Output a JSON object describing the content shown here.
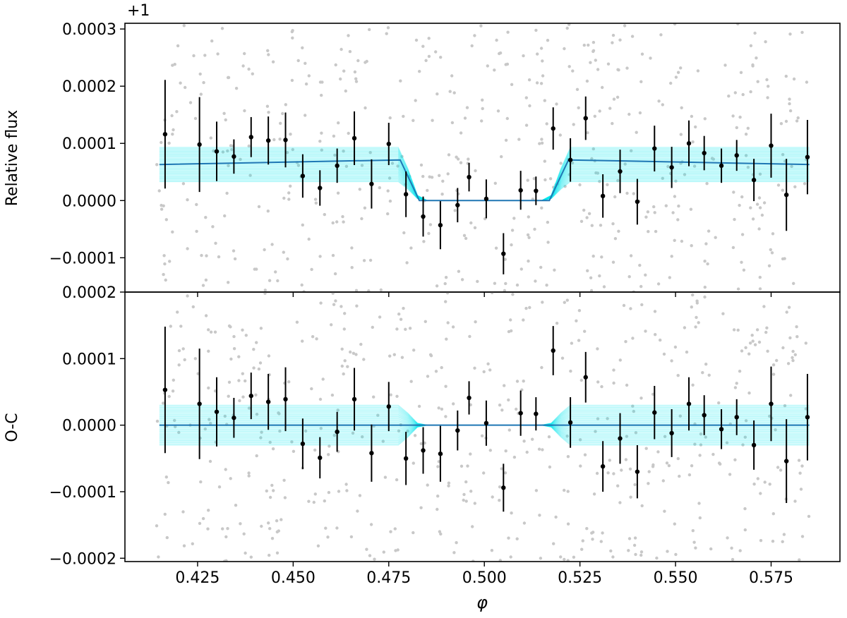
{
  "chart_data": [
    {
      "type": "scatter",
      "panel": "top",
      "ylabel": "Relative flux",
      "y_offset_label": "+1",
      "xlim": [
        0.406,
        0.593
      ],
      "ylim": [
        -0.00016,
        0.00031
      ],
      "xticks": [
        "0.425",
        "0.450",
        "0.475",
        "0.500",
        "0.525",
        "0.550",
        "0.575"
      ],
      "yticks": [
        "0.0003",
        "0.0002",
        "0.0001",
        "0.0000",
        "−0.0001"
      ],
      "grid": false,
      "model": {
        "name": "",
        "color": "#1f77b4",
        "x": [
          0.415,
          0.478,
          0.483,
          0.517,
          0.522,
          0.585
        ],
        "y": [
          6.3e-05,
          7.1e-05,
          0.0,
          0.0,
          7.1e-05,
          6.3e-05
        ]
      },
      "samples_band": {
        "color": "#00e5ee",
        "center_out": 6.3e-05,
        "spread": 3e-05
      },
      "binned_points": {
        "color": "#000000",
        "x": [
          0.4165,
          0.4255,
          0.43,
          0.4345,
          0.439,
          0.4435,
          0.448,
          0.4525,
          0.457,
          0.4615,
          0.466,
          0.4705,
          0.475,
          0.4795,
          0.484,
          0.4885,
          0.493,
          0.496,
          0.5005,
          0.505,
          0.5095,
          0.5135,
          0.518,
          0.5225,
          0.5265,
          0.531,
          0.5355,
          0.54,
          0.5445,
          0.549,
          0.5535,
          0.5575,
          0.562,
          0.566,
          0.5705,
          0.575,
          0.579,
          0.5845
        ],
        "y": [
          0.000116,
          9.8e-05,
          8.6e-05,
          7.7e-05,
          0.000111,
          0.000105,
          0.000106,
          4.3e-05,
          2.2e-05,
          6.1e-05,
          0.000109,
          2.9e-05,
          9.9e-05,
          1.1e-05,
          -2.8e-05,
          -4.3e-05,
          -8e-06,
          4.1e-05,
          3e-06,
          -9.3e-05,
          1.8e-05,
          1.7e-05,
          0.000126,
          7.1e-05,
          0.000144,
          8e-06,
          5.1e-05,
          -2e-06,
          9.1e-05,
          5.8e-05,
          0.0001,
          8.3e-05,
          6.1e-05,
          7.9e-05,
          3.6e-05,
          9.6e-05,
          1e-05,
          7.6e-05
        ],
        "yerr": [
          9.5e-05,
          8.3e-05,
          5.2e-05,
          3e-05,
          3.5e-05,
          4.2e-05,
          4.8e-05,
          3.8e-05,
          3.1e-05,
          3e-05,
          4.7e-05,
          4.3e-05,
          3.7e-05,
          4e-05,
          3.5e-05,
          4.2e-05,
          3e-05,
          2.5e-05,
          3.4e-05,
          3.6e-05,
          3.4e-05,
          2.5e-05,
          3.7e-05,
          3.8e-05,
          3.8e-05,
          3.8e-05,
          3.8e-05,
          4e-05,
          4e-05,
          3.6e-05,
          4e-05,
          3e-05,
          3e-05,
          2.7e-05,
          3.7e-05,
          5.6e-05,
          6.3e-05,
          6.5e-05
        ]
      },
      "raw_points": {
        "color": "#c8c8c8"
      }
    },
    {
      "type": "scatter",
      "panel": "bottom",
      "ylabel": "O-C",
      "xlabel": "φ",
      "xlim": [
        0.406,
        0.593
      ],
      "ylim": [
        -0.000205,
        0.0002
      ],
      "xticks": [
        "0.425",
        "0.450",
        "0.475",
        "0.500",
        "0.525",
        "0.550",
        "0.575"
      ],
      "yticks": [
        "0.0002",
        "0.0001",
        "0.0000",
        "−0.0001",
        "−0.0002"
      ],
      "grid": false,
      "model": {
        "name": "",
        "color": "#1f77b4",
        "x": [
          0.415,
          0.585
        ],
        "y": [
          0.0,
          0.0
        ]
      },
      "samples_band": {
        "color": "#00e5ee",
        "center_out": 0.0,
        "spread": 3e-05
      },
      "binned_points": {
        "color": "#000000",
        "x": [
          0.4165,
          0.4255,
          0.43,
          0.4345,
          0.439,
          0.4435,
          0.448,
          0.4525,
          0.457,
          0.4615,
          0.466,
          0.4705,
          0.475,
          0.4795,
          0.484,
          0.4885,
          0.493,
          0.496,
          0.5005,
          0.505,
          0.5095,
          0.5135,
          0.518,
          0.5225,
          0.5265,
          0.531,
          0.5355,
          0.54,
          0.5445,
          0.549,
          0.5535,
          0.5575,
          0.562,
          0.566,
          0.5705,
          0.575,
          0.579,
          0.5845
        ],
        "y": [
          5.3e-05,
          3.2e-05,
          2e-05,
          1.1e-05,
          4.4e-05,
          3.5e-05,
          3.9e-05,
          -2.8e-05,
          -4.9e-05,
          -1e-05,
          3.9e-05,
          -4.2e-05,
          2.8e-05,
          -5e-05,
          -3.8e-05,
          -4.3e-05,
          -8e-06,
          4.1e-05,
          3e-06,
          -9.4e-05,
          1.8e-05,
          1.7e-05,
          0.000112,
          4e-06,
          7.2e-05,
          -6.2e-05,
          -2e-05,
          -7e-05,
          1.9e-05,
          -1.2e-05,
          3.2e-05,
          1.5e-05,
          -6e-06,
          1.2e-05,
          -3e-05,
          3.2e-05,
          -5.4e-05,
          1.2e-05
        ],
        "yerr": [
          9.5e-05,
          8.3e-05,
          5.2e-05,
          3e-05,
          3.5e-05,
          4.2e-05,
          4.8e-05,
          3.8e-05,
          3.1e-05,
          3e-05,
          4.7e-05,
          4.3e-05,
          3.7e-05,
          4e-05,
          3.5e-05,
          4.2e-05,
          3e-05,
          2.5e-05,
          3.4e-05,
          3.6e-05,
          3.4e-05,
          2.5e-05,
          3.7e-05,
          3.8e-05,
          3.8e-05,
          3.8e-05,
          3.8e-05,
          4e-05,
          4e-05,
          3.6e-05,
          4e-05,
          3e-05,
          3e-05,
          2.7e-05,
          3.7e-05,
          5.6e-05,
          6.3e-05,
          6.5e-05
        ]
      },
      "raw_points": {
        "color": "#c8c8c8"
      }
    }
  ]
}
